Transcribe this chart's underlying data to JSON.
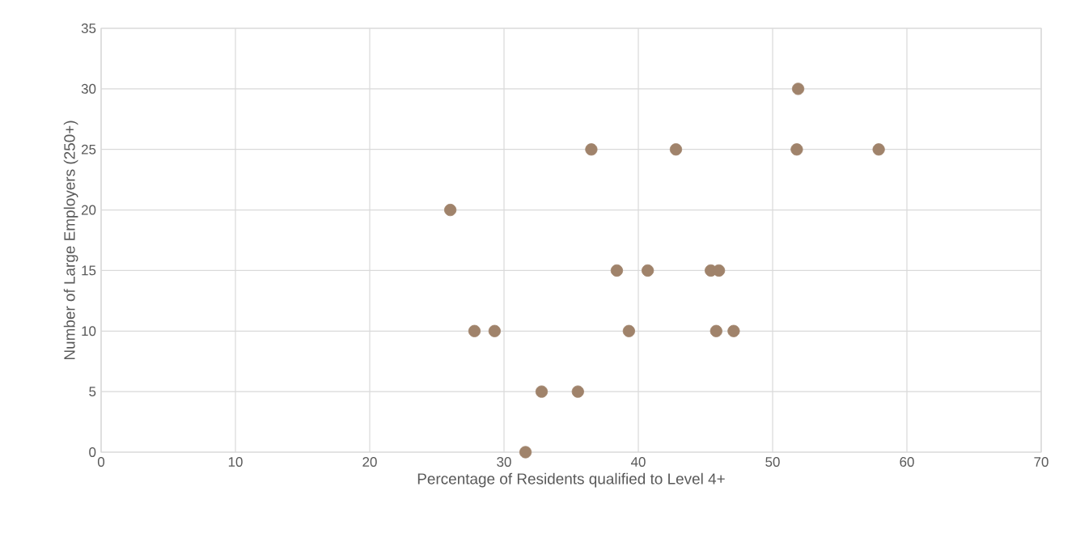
{
  "chart_data": {
    "type": "scatter",
    "xlabel": "Percentage of Residents qualified to Level 4+",
    "ylabel": "Number of Large Employers (250+)",
    "x": [
      26.0,
      27.8,
      29.3,
      31.6,
      32.8,
      35.5,
      36.5,
      38.4,
      39.3,
      40.7,
      42.8,
      45.4,
      46.0,
      45.8,
      47.1,
      51.9,
      51.8,
      57.9
    ],
    "values": [
      20,
      10,
      10,
      0,
      5,
      5,
      25,
      15,
      10,
      15,
      25,
      15,
      15,
      10,
      10,
      30,
      25,
      25
    ],
    "color": "#a0836b",
    "marker": "circle",
    "grid": true,
    "xlim": [
      0,
      70
    ],
    "xticks": [
      0,
      10,
      20,
      30,
      40,
      50,
      60,
      70
    ],
    "ylim": [
      0,
      35
    ],
    "yticks": [
      0,
      5,
      10,
      15,
      20,
      25,
      30,
      35
    ]
  }
}
